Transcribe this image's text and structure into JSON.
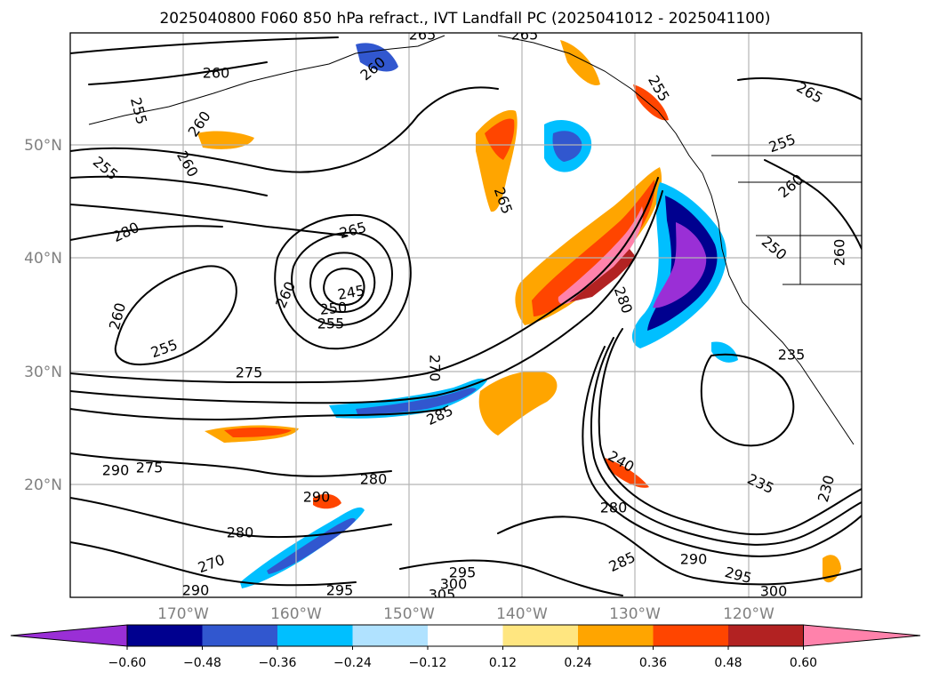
{
  "title": "2025040800 F060 850 hPa refract., IVT Landfall PC (2025041012 - 2025041100)",
  "lat_labels": [
    "50°N",
    "40°N",
    "30°N",
    "20°N"
  ],
  "lon_labels": [
    "170°W",
    "160°W",
    "150°W",
    "140°W",
    "130°W",
    "120°W"
  ],
  "colorbar": {
    "ticks": [
      "−0.60",
      "−0.48",
      "−0.36",
      "−0.24",
      "−0.12",
      "0.12",
      "0.24",
      "0.36",
      "0.48",
      "0.60"
    ],
    "colors": [
      "#9a2fd6",
      "#00008f",
      "#3157cf",
      "#00bfff",
      "#b0e2ff",
      "#ffffff",
      "#ffe680",
      "#ffa500",
      "#ff4500",
      "#b22222",
      "#ff82ab"
    ]
  },
  "contour_labels": [
    "260",
    "255",
    "260",
    "255",
    "260",
    "280",
    "265",
    "245",
    "250",
    "255",
    "260",
    "260",
    "255",
    "275",
    "270",
    "285",
    "280",
    "275",
    "290",
    "290",
    "280",
    "280",
    "270",
    "290",
    "295",
    "300",
    "305",
    "295",
    "285",
    "290",
    "295",
    "300",
    "280",
    "235",
    "230",
    "240",
    "235",
    "265",
    "255",
    "265",
    "255",
    "260",
    "250",
    "260",
    "265",
    "260",
    "265"
  ]
}
